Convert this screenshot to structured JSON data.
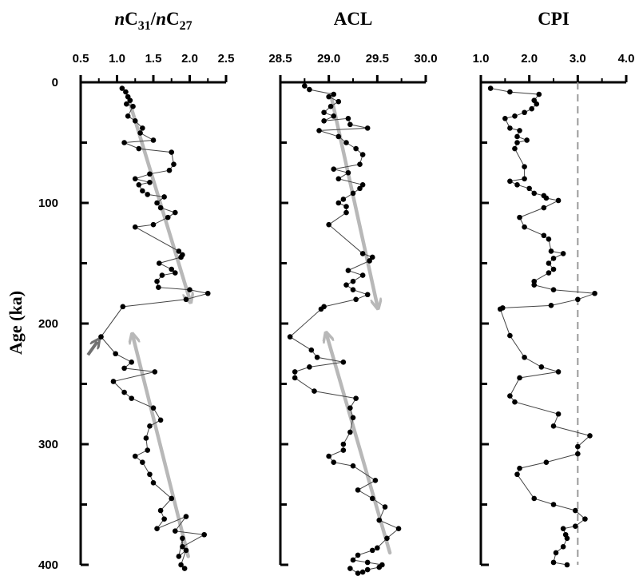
{
  "chart_data": {
    "type": "scatter",
    "ylabel": "Age (ka)",
    "ylim": [
      400,
      0
    ],
    "yticks": [
      0,
      100,
      200,
      300,
      400
    ],
    "panels": [
      {
        "id": "c31c27",
        "title_parts": [
          {
            "t": "n",
            "italic": true
          },
          {
            "t": "C"
          },
          {
            "t": "31",
            "sub": true
          },
          {
            "t": "/"
          },
          {
            "t": "n",
            "italic": true
          },
          {
            "t": "C"
          },
          {
            "t": "27",
            "sub": true
          }
        ],
        "xlim": [
          0.5,
          2.5
        ],
        "xticks": [
          0.5,
          1.0,
          1.5,
          2.0,
          2.5
        ],
        "xtick_labels": [
          "0.5",
          "1.0",
          "1.5",
          "2.0",
          "2.5"
        ],
        "series": [
          {
            "x": [
              1.07,
              1.12,
              1.15,
              1.18,
              1.13,
              1.22,
              1.15,
              1.25,
              1.35,
              1.32,
              1.5,
              1.1,
              1.3,
              1.75,
              1.78,
              1.72,
              1.45,
              1.25,
              1.45,
              1.3,
              1.35,
              1.42,
              1.65,
              1.55,
              1.6,
              1.8,
              1.7,
              1.5,
              1.25,
              1.85,
              1.9,
              1.88,
              1.58,
              1.75,
              1.8,
              1.62,
              1.55,
              1.57,
              2.0,
              2.25,
              1.95,
              1.08,
              0.78,
              0.98,
              1.2,
              1.1,
              1.52,
              0.95,
              1.1,
              1.2,
              1.5,
              1.6,
              1.45,
              1.4,
              1.42,
              1.25,
              1.35,
              1.45,
              1.5,
              1.75,
              1.6,
              1.65,
              1.55,
              1.95,
              1.8,
              2.2,
              1.9,
              1.9,
              1.85,
              1.95,
              1.88,
              1.93
            ],
            "y": [
              5,
              8,
              12,
              15,
              18,
              20,
              28,
              32,
              38,
              42,
              48,
              50,
              55,
              58,
              68,
              73,
              76,
              80,
              83,
              85,
              90,
              93,
              95,
              100,
              104,
              108,
              112,
              118,
              120,
              140,
              143,
              145,
              150,
              155,
              158,
              160,
              165,
              170,
              172,
              175,
              180,
              186,
              211,
              225,
              232,
              237,
              240,
              248,
              257,
              262,
              270,
              280,
              285,
              295,
              305,
              310,
              315,
              325,
              332,
              345,
              355,
              362,
              370,
              360,
              372,
              375,
              385,
              378,
              393,
              388,
              400,
              403
            ]
          }
        ],
        "trend": [
          {
            "x0": 1.15,
            "y0": 12,
            "x1": 2.0,
            "y1": 180
          },
          {
            "x0": 1.98,
            "y0": 393,
            "x1": 1.22,
            "y1": 211
          }
        ],
        "annotations": [
          {
            "type": "arrow",
            "x0": 0.6,
            "y0": 226,
            "x1": 0.73,
            "y1": 215
          }
        ]
      },
      {
        "id": "acl",
        "title_parts": [
          {
            "t": "ACL"
          }
        ],
        "xlim": [
          28.5,
          30.0
        ],
        "xticks": [
          28.5,
          29.0,
          29.5,
          30.0
        ],
        "xtick_labels": [
          "28.5",
          "29.0",
          "29.5",
          "30.0"
        ],
        "series": [
          {
            "x": [
              28.75,
              28.8,
              29.05,
              29.0,
              29.1,
              29.02,
              28.95,
              29.05,
              28.95,
              29.2,
              29.22,
              29.4,
              28.9,
              29.1,
              29.18,
              29.28,
              29.35,
              29.32,
              29.05,
              29.2,
              29.1,
              29.35,
              29.32,
              29.25,
              29.15,
              29.1,
              29.18,
              29.18,
              29.0,
              29.35,
              29.45,
              29.42,
              29.2,
              29.35,
              29.25,
              29.18,
              29.25,
              29.4,
              29.28,
              28.95,
              28.92,
              28.6,
              28.82,
              28.88,
              29.15,
              28.8,
              28.65,
              28.65,
              28.85,
              29.28,
              29.22,
              29.25,
              29.22,
              29.15,
              29.15,
              29.0,
              29.05,
              29.25,
              29.48,
              29.3,
              29.45,
              29.58,
              29.52,
              29.72,
              29.6,
              29.5,
              29.45,
              29.3,
              29.25,
              29.4,
              29.55,
              29.52,
              29.4,
              29.35,
              29.3,
              29.22
            ],
            "y": [
              3,
              6,
              10,
              12,
              16,
              20,
              25,
              28,
              32,
              30,
              35,
              38,
              40,
              45,
              50,
              55,
              60,
              68,
              72,
              75,
              80,
              85,
              88,
              92,
              97,
              100,
              103,
              108,
              118,
              142,
              145,
              148,
              156,
              160,
              165,
              168,
              172,
              176,
              180,
              186,
              188,
              211,
              222,
              228,
              232,
              236,
              240,
              245,
              256,
              262,
              270,
              278,
              290,
              300,
              305,
              310,
              315,
              318,
              330,
              338,
              345,
              352,
              363,
              370,
              378,
              386,
              388,
              392,
              396,
              398,
              400,
              402,
              404,
              406,
              407,
              403
            ]
          }
        ],
        "trend": [
          {
            "x0": 29.02,
            "y0": 10,
            "x1": 29.5,
            "y1": 185
          },
          {
            "x0": 29.63,
            "y0": 390,
            "x1": 28.98,
            "y1": 210
          }
        ],
        "annotations": []
      },
      {
        "id": "cpi",
        "title_parts": [
          {
            "t": "CPI"
          }
        ],
        "xlim": [
          1.0,
          4.0
        ],
        "xticks": [
          1.0,
          2.0,
          3.0,
          4.0
        ],
        "xtick_labels": [
          "1.0",
          "2.0",
          "3.0",
          "4.0"
        ],
        "series": [
          {
            "x": [
              1.2,
              1.6,
              2.2,
              2.1,
              2.15,
              2.05,
              1.9,
              1.7,
              1.5,
              1.6,
              1.8,
              1.75,
              1.95,
              1.75,
              1.7,
              1.9,
              1.9,
              1.6,
              1.75,
              2.0,
              2.1,
              2.3,
              2.35,
              2.6,
              2.3,
              1.8,
              1.9,
              2.3,
              2.4,
              2.45,
              2.7,
              2.5,
              2.4,
              2.5,
              2.4,
              2.1,
              2.1,
              2.5,
              3.35,
              3.0,
              2.45,
              1.45,
              1.4,
              1.6,
              1.9,
              2.25,
              2.6,
              1.8,
              1.6,
              1.7,
              2.6,
              2.5,
              3.25,
              3.0,
              3.0,
              2.35,
              1.8,
              1.75,
              2.1,
              2.5,
              2.95,
              3.15,
              2.95,
              2.7,
              2.75,
              2.78,
              2.7,
              2.55,
              2.5,
              2.78
            ],
            "y": [
              5,
              8,
              10,
              15,
              18,
              22,
              25,
              28,
              30,
              38,
              40,
              45,
              48,
              50,
              55,
              70,
              80,
              82,
              85,
              88,
              92,
              94,
              96,
              98,
              104,
              112,
              120,
              127,
              130,
              140,
              142,
              146,
              150,
              155,
              160,
              165,
              168,
              172,
              175,
              180,
              185,
              187,
              188,
              210,
              225,
              235,
              240,
              245,
              255,
              260,
              275,
              285,
              300,
              315,
              330,
              350,
              355,
              360,
              375,
              380,
              385,
              390,
              400,
              405,
              410,
              415,
              420,
              425,
              430,
              436
            ],
            "y_shown": [
              5,
              8,
              10,
              15,
              18,
              22,
              25,
              28,
              30,
              38,
              40,
              45,
              48,
              50,
              55,
              70,
              80,
              82,
              85,
              88,
              92,
              94,
              96,
              98,
              104,
              112,
              120,
              127,
              130,
              140,
              142,
              146,
              150,
              155,
              158,
              165,
              168,
              172,
              175,
              180,
              185,
              187,
              188,
              210,
              228,
              236,
              240,
              245,
              260,
              265,
              275,
              285,
              293,
              302,
              308,
              315,
              320,
              325,
              345,
              350,
              355,
              362,
              368,
              370,
              375,
              378,
              385,
              390,
              398,
              400
            ]
          }
        ],
        "reference_line": {
          "x": 3.0,
          "style": "dashed",
          "color": "#9a9a9a"
        },
        "trend": [],
        "annotations": []
      }
    ],
    "colors": {
      "points": "#000000",
      "connector": "#444444",
      "trend": "#b8b8b8",
      "annotation_arrow": "#707070"
    }
  }
}
